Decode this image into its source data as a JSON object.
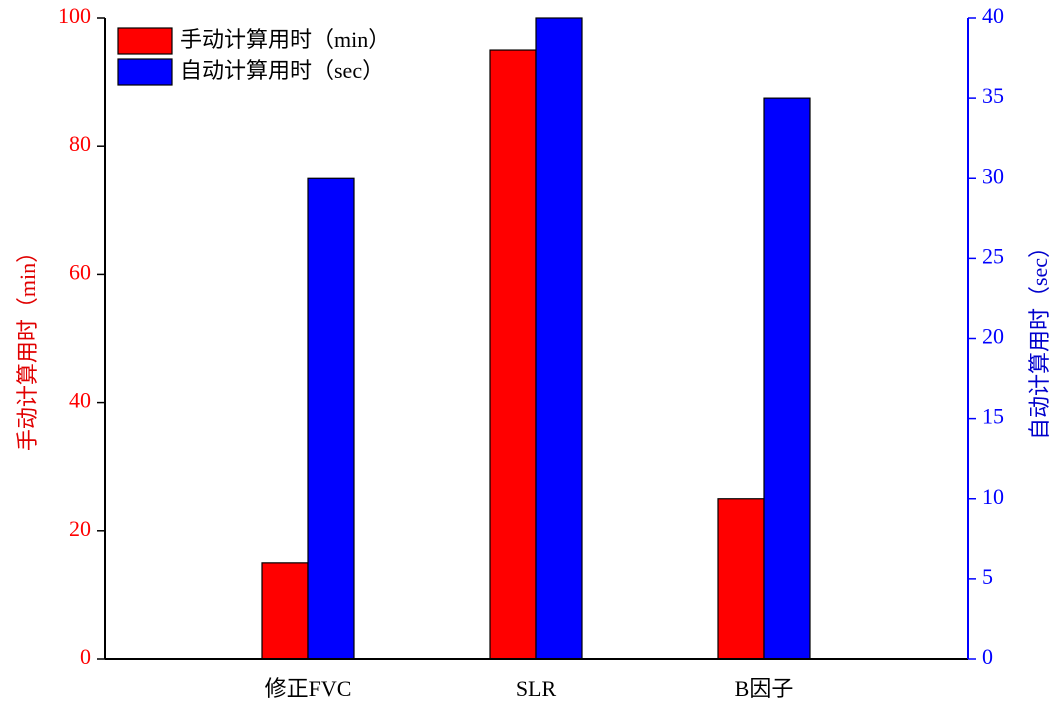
{
  "chart_data": {
    "type": "bar",
    "categories": [
      "修正FVC",
      "SLR",
      "B因子"
    ],
    "series": [
      {
        "name": "手动计算用时（min）",
        "color": "#ff0000",
        "values": [
          15,
          95,
          25
        ]
      },
      {
        "name": "自动计算用时（sec）",
        "color": "#0000ff",
        "values": [
          30,
          40,
          35
        ],
        "axis": "y2"
      }
    ],
    "ylabel": "手动计算用时（min）",
    "y2label": "自动计算用时（sec）",
    "ylim": [
      0,
      100
    ],
    "yticks": [
      0,
      20,
      40,
      60,
      80,
      100
    ],
    "y2lim": [
      0,
      40
    ],
    "y2ticks": [
      0,
      5,
      10,
      15,
      20,
      25,
      30,
      35,
      40
    ],
    "legend": "upper left"
  }
}
